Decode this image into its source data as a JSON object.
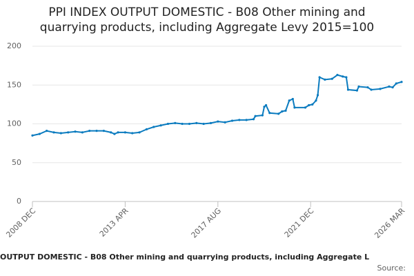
{
  "chart_data": {
    "type": "line",
    "title": [
      "PPI INDEX OUTPUT DOMESTIC - B08 Other mining and",
      "quarrying products, including Aggregate Levy 2015=100"
    ],
    "caption": "OUTPUT DOMESTIC - B08 Other mining and quarrying products, including Aggregate L",
    "source": "Source:",
    "x": [
      "2008 DEC",
      "2009 APR",
      "2009 AUG",
      "2009 DEC",
      "2010 APR",
      "2010 AUG",
      "2010 DEC",
      "2011 APR",
      "2011 AUG",
      "2011 DEC",
      "2012 APR",
      "2012 AUG",
      "2012 OCT",
      "2012 DEC",
      "2013 APR",
      "2013 AUG",
      "2013 DEC",
      "2014 APR",
      "2014 AUG",
      "2014 DEC",
      "2015 APR",
      "2015 AUG",
      "2015 DEC",
      "2016 APR",
      "2016 AUG",
      "2016 DEC",
      "2017 APR",
      "2017 AUG",
      "2017 DEC",
      "2018 APR",
      "2018 AUG",
      "2018 DEC",
      "2019 APR",
      "2019 MAY",
      "2019 SEP",
      "2019 OCT",
      "2019 NOV",
      "2020 JAN",
      "2020 JUN",
      "2020 AUG",
      "2020 OCT",
      "2020 DEC",
      "2021 FEB",
      "2021 MAR",
      "2021 SEP",
      "2021 NOV",
      "2022 JAN",
      "2022 MAR",
      "2022 APR",
      "2022 MAY",
      "2022 AUG",
      "2022 DEC",
      "2023 MAR",
      "2023 JUN",
      "2023 AUG",
      "2023 SEP",
      "2024 FEB",
      "2024 MAR",
      "2024 AUG",
      "2024 OCT",
      "2025 MAR",
      "2025 AUG",
      "2025 OCT",
      "2025 DEC",
      "2026 MAR"
    ],
    "series": [
      {
        "color": "#0a7bbf",
        "values": [
          85,
          87,
          91,
          89,
          88,
          89,
          90,
          89,
          91,
          91,
          91,
          89,
          87,
          89,
          89,
          88,
          89,
          93,
          96,
          98,
          100,
          101,
          100,
          100,
          101,
          100,
          101,
          103,
          102,
          104,
          105,
          105,
          106,
          110,
          111,
          122,
          124,
          114,
          113,
          116,
          117,
          130,
          132,
          121,
          121,
          124,
          125,
          130,
          137,
          160,
          157,
          158,
          163,
          161,
          160,
          144,
          143,
          148,
          147,
          144,
          145,
          148,
          147,
          152,
          154
        ]
      }
    ],
    "xlim": [
      "2008 DEC",
      "2026 MAR"
    ],
    "xticks": [
      "2008 DEC",
      "2013 APR",
      "2017 AUG",
      "2021 DEC",
      "2026 MAR"
    ],
    "ylim": [
      0,
      200
    ],
    "yticks": [
      0,
      50,
      100,
      150,
      200
    ],
    "grid": true
  }
}
